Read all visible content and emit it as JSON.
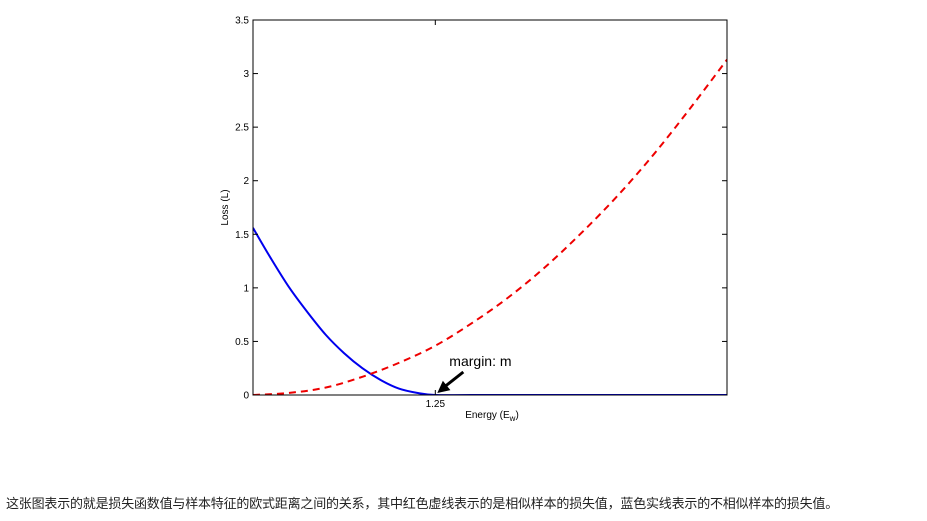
{
  "chart_data": {
    "type": "line",
    "xlabel": "Energy (E",
    "xlabel_sub": "w",
    "xlabel_close": ")",
    "ylabel": "Loss (L)",
    "xlim": [
      0,
      3.25
    ],
    "ylim": [
      0,
      3.5
    ],
    "x_ticks": [
      {
        "value": 1.25,
        "label": "1.25"
      }
    ],
    "y_ticks": [
      {
        "value": 0,
        "label": "0"
      },
      {
        "value": 0.5,
        "label": "0.5"
      },
      {
        "value": 1,
        "label": "1"
      },
      {
        "value": 1.5,
        "label": "1.5"
      },
      {
        "value": 2,
        "label": "2"
      },
      {
        "value": 2.5,
        "label": "2.5"
      },
      {
        "value": 3,
        "label": "3"
      },
      {
        "value": 3.5,
        "label": "3.5"
      }
    ],
    "grid": false,
    "series": [
      {
        "style": "solid",
        "color": "#0000ee",
        "x": [
          0,
          0.125,
          0.25,
          0.375,
          0.5,
          0.625,
          0.75,
          0.875,
          1.0,
          1.125,
          1.25,
          1.5,
          2.0,
          2.5,
          3.0,
          3.25
        ],
        "y": [
          1.56,
          1.27,
          1.0,
          0.77,
          0.56,
          0.39,
          0.25,
          0.14,
          0.06,
          0.02,
          0,
          0,
          0,
          0,
          0,
          0
        ]
      },
      {
        "style": "dashed",
        "color": "#ee0000",
        "x": [
          0,
          0.25,
          0.5,
          0.75,
          1.0,
          1.25,
          1.5,
          1.75,
          2.0,
          2.25,
          2.5,
          2.75,
          3.0,
          3.25
        ],
        "y": [
          0,
          0.02,
          0.07,
          0.17,
          0.3,
          0.46,
          0.67,
          0.91,
          1.19,
          1.51,
          1.86,
          2.25,
          2.68,
          3.13
        ]
      }
    ],
    "annotation": {
      "text": "margin: m",
      "x": 1.25,
      "y": 0
    }
  },
  "caption": "这张图表示的就是损失函数值与样本特征的欧式距离之间的关系，其中红色虚线表示的是相似样本的损失值，蓝色实线表示的不相似样本的损失值。"
}
